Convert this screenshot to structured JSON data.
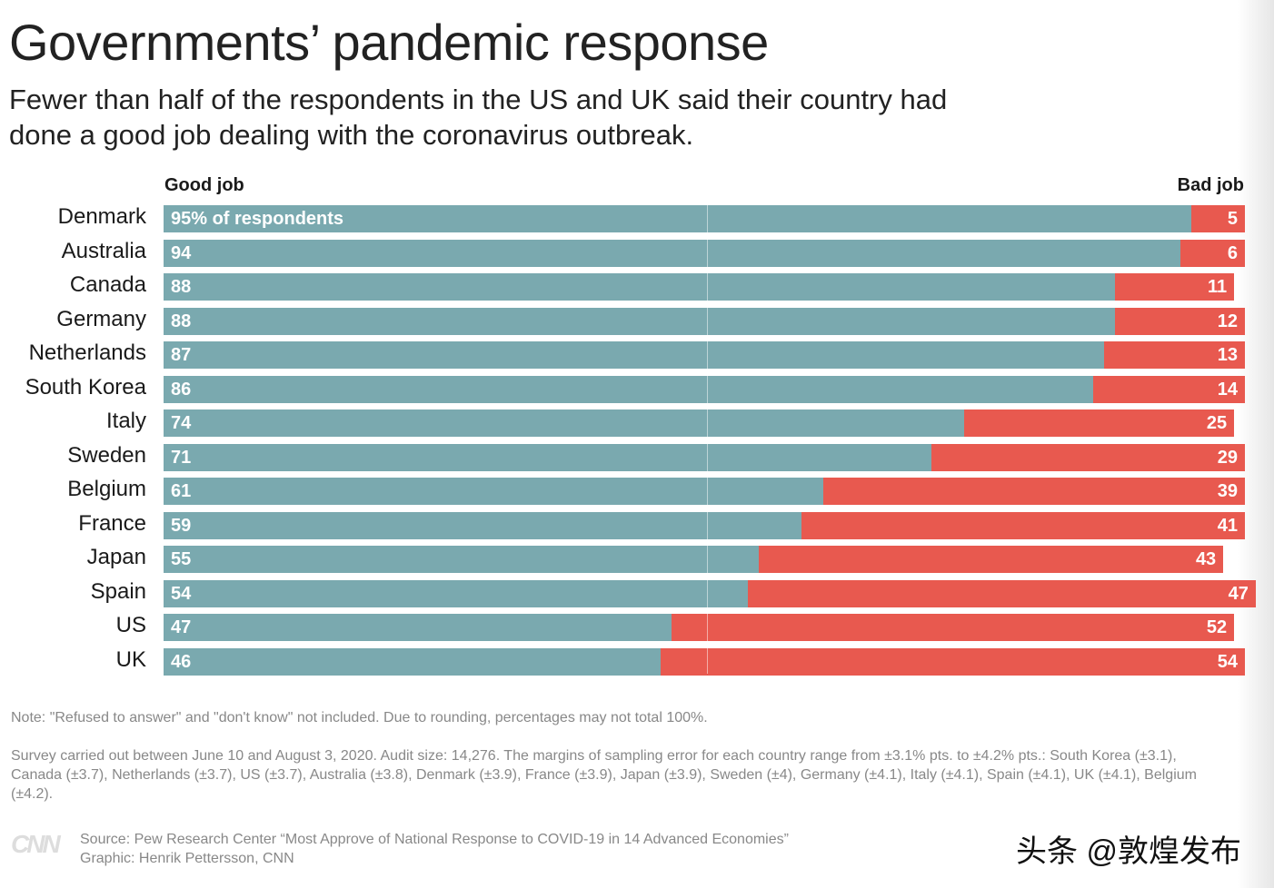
{
  "title": "Governments’ pandemic response",
  "subtitle": "Fewer than half of the respondents in the US and UK said their country had done a good job dealing with the coronavirus outbreak.",
  "chart_data": {
    "type": "bar",
    "stacked": true,
    "orientation": "horizontal",
    "legend": {
      "good": "Good job",
      "bad": "Bad job"
    },
    "first_label_suffix": "% of respondents",
    "colors": {
      "good": "#7aa9af",
      "bad": "#e8594f"
    },
    "categories": [
      "Denmark",
      "Australia",
      "Canada",
      "Germany",
      "Netherlands",
      "South Korea",
      "Italy",
      "Sweden",
      "Belgium",
      "France",
      "Japan",
      "Spain",
      "US",
      "UK"
    ],
    "series": [
      {
        "name": "Good job",
        "values": [
          95,
          94,
          88,
          88,
          87,
          86,
          74,
          71,
          61,
          59,
          55,
          54,
          47,
          46
        ]
      },
      {
        "name": "Bad job",
        "values": [
          5,
          6,
          11,
          12,
          13,
          14,
          25,
          29,
          39,
          41,
          43,
          47,
          52,
          54
        ]
      }
    ],
    "xlim": [
      0,
      100
    ]
  },
  "notes": {
    "note": "Note: \"Refused to answer\" and \"don't know\" not included. Due to rounding, percentages may not total 100%.",
    "survey": "Survey carried out between June 10 and August 3, 2020. Audit size: 14,276. The margins of sampling error for each country range from ±3.1% pts. to ±4.2% pts.: South Korea (±3.1), Canada (±3.7), Netherlands (±3.7), US (±3.7), Australia (±3.8), Denmark (±3.9), France (±3.9), Japan  (±3.9), Sweden (±4), Germany (±4.1), Italy (±4.1), Spain (±4.1), UK (±4.1),  Belgium (±4.2).",
    "source": "Source: Pew Research Center “Most Approve of National Response to COVID-19 in 14 Advanced Economies”",
    "graphic": "Graphic: Henrik Pettersson, CNN"
  },
  "logo": "CNN",
  "watermark": "头条 @敦煌发布"
}
